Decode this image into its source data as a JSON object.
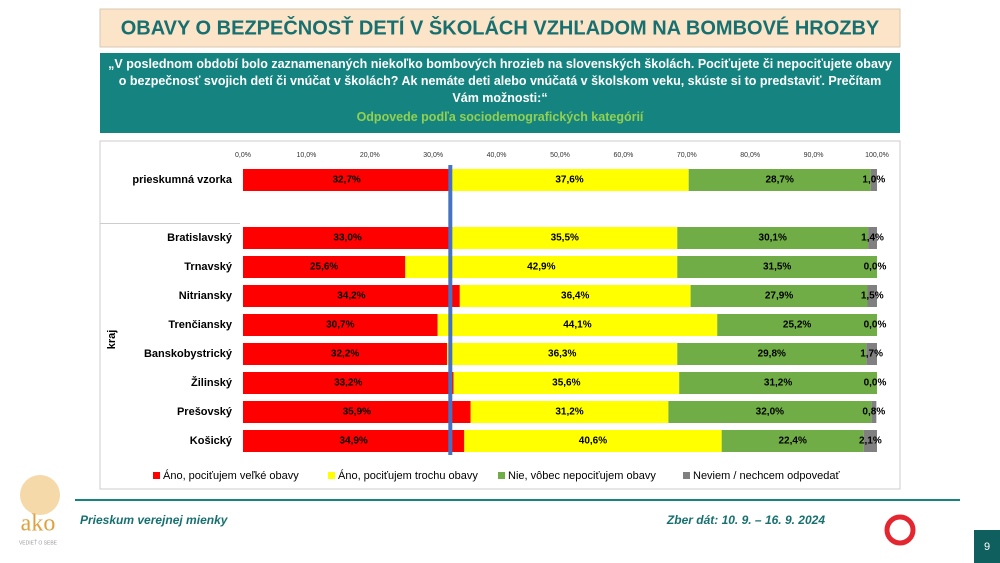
{
  "header": {
    "title": "OBAVY O BEZPEČNOSŤ DETÍ V ŠKOLÁCH VZHĽADOM NA BOMBOVÉ HROZBY",
    "question": "„V poslednom období bolo zaznamenaných niekoľko bombových hrozieb na slovenských školách. Pociťujete či nepociťujete obavy o bezpečnosť svojich detí či vnúčat v školách? Ak nemáte deti alebo vnúčatá v školskom veku, skúste si to predstaviť. Prečítam Vám možnosti:“",
    "subtitle": "Odpovede podľa sociodemografických kategórií"
  },
  "chart_data": {
    "type": "stacked-bar-horizontal",
    "group_label": "kraj",
    "categories": [
      "prieskumná vzorka",
      null,
      "Bratislavský",
      "Trnavský",
      "Nitriansky",
      "Trenčiansky",
      "Banskobystrický",
      "Žilinský",
      "Prešovský",
      "Košický"
    ],
    "series": [
      {
        "name": "Áno, pociťujem veľké obavy",
        "color": "#ff0000",
        "values": [
          32.7,
          null,
          33.0,
          25.6,
          34.2,
          30.7,
          32.2,
          33.2,
          35.9,
          34.9
        ],
        "value_labels": [
          "32,7%",
          null,
          "33,0%",
          "25,6%",
          "34,2%",
          "30,7%",
          "32,2%",
          "33,2%",
          "35,9%",
          "34,9%"
        ]
      },
      {
        "name": "Áno, pociťujem trochu obavy",
        "color": "#ffff00",
        "values": [
          37.6,
          null,
          35.5,
          42.9,
          36.4,
          44.1,
          36.3,
          35.6,
          31.2,
          40.6
        ],
        "value_labels": [
          "37,6%",
          null,
          "35,5%",
          "42,9%",
          "36,4%",
          "44,1%",
          "36,3%",
          "35,6%",
          "31,2%",
          "40,6%"
        ]
      },
      {
        "name": "Nie, vôbec nepociťujem obavy",
        "color": "#70ad47",
        "values": [
          28.7,
          null,
          30.1,
          31.5,
          27.9,
          25.2,
          29.8,
          31.2,
          32.0,
          22.4
        ],
        "value_labels": [
          "28,7%",
          null,
          "30,1%",
          "31,5%",
          "27,9%",
          "25,2%",
          "29,8%",
          "31,2%",
          "32,0%",
          "22,4%"
        ]
      },
      {
        "name": "Neviem / nechcem odpovedať",
        "color": "#808080",
        "values": [
          1.0,
          null,
          1.4,
          0.0,
          1.5,
          0.0,
          1.7,
          0.0,
          0.8,
          2.1
        ],
        "value_labels": [
          "1,0%",
          null,
          "1,4%",
          "0,0%",
          "1,5%",
          "0,0%",
          "1,7%",
          "0,0%",
          "0,8%",
          "2,1%"
        ]
      }
    ],
    "xlim": [
      0,
      100
    ],
    "xticks": [
      {
        "value": 0,
        "label": "0,0%"
      },
      {
        "value": 10,
        "label": "10,0%"
      },
      {
        "value": 20,
        "label": "20,0%"
      },
      {
        "value": 30,
        "label": "30,0%"
      },
      {
        "value": 40,
        "label": "40,0%"
      },
      {
        "value": 50,
        "label": "50,0%"
      },
      {
        "value": 60,
        "label": "60,0%"
      },
      {
        "value": 70,
        "label": "70,0%"
      },
      {
        "value": 80,
        "label": "80,0%"
      },
      {
        "value": 90,
        "label": "90,0%"
      },
      {
        "value": 100,
        "label": "100,0%"
      }
    ],
    "reference_line_color": "#4472c4"
  },
  "footer": {
    "left": "Prieskum verejnej mienky",
    "right": "Zber dát: 10. 9. – 16. 9. 2024",
    "logo": "ako",
    "logo_tagline": "VEDIEŤ O SEBE",
    "page": "9"
  }
}
